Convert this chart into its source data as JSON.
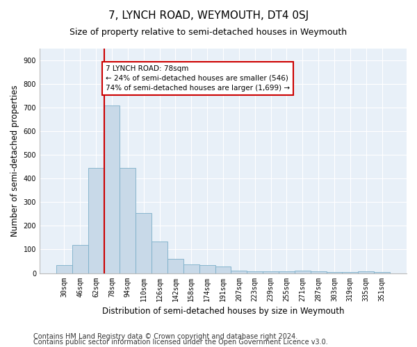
{
  "title": "7, LYNCH ROAD, WEYMOUTH, DT4 0SJ",
  "subtitle": "Size of property relative to semi-detached houses in Weymouth",
  "xlabel": "Distribution of semi-detached houses by size in Weymouth",
  "ylabel": "Number of semi-detached properties",
  "categories": [
    "30sqm",
    "46sqm",
    "62sqm",
    "78sqm",
    "94sqm",
    "110sqm",
    "126sqm",
    "142sqm",
    "158sqm",
    "174sqm",
    "191sqm",
    "207sqm",
    "223sqm",
    "239sqm",
    "255sqm",
    "271sqm",
    "287sqm",
    "303sqm",
    "319sqm",
    "335sqm",
    "351sqm"
  ],
  "values": [
    35,
    120,
    445,
    710,
    445,
    255,
    135,
    60,
    38,
    35,
    28,
    10,
    8,
    8,
    8,
    10,
    8,
    5,
    5,
    8,
    5
  ],
  "bar_color": "#c8d9e8",
  "bar_edge_color": "#7aaec8",
  "vline_color": "#cc0000",
  "annotation_text": "7 LYNCH ROAD: 78sqm\n← 24% of semi-detached houses are smaller (546)\n74% of semi-detached houses are larger (1,699) →",
  "annotation_box_color": "#ffffff",
  "annotation_box_edge": "#cc0000",
  "ylim": [
    0,
    950
  ],
  "yticks": [
    0,
    100,
    200,
    300,
    400,
    500,
    600,
    700,
    800,
    900
  ],
  "footer_line1": "Contains HM Land Registry data © Crown copyright and database right 2024.",
  "footer_line2": "Contains public sector information licensed under the Open Government Licence v3.0.",
  "plot_bg_color": "#e8f0f8",
  "title_fontsize": 11,
  "subtitle_fontsize": 9,
  "axis_label_fontsize": 8.5,
  "tick_fontsize": 7,
  "footer_fontsize": 7
}
